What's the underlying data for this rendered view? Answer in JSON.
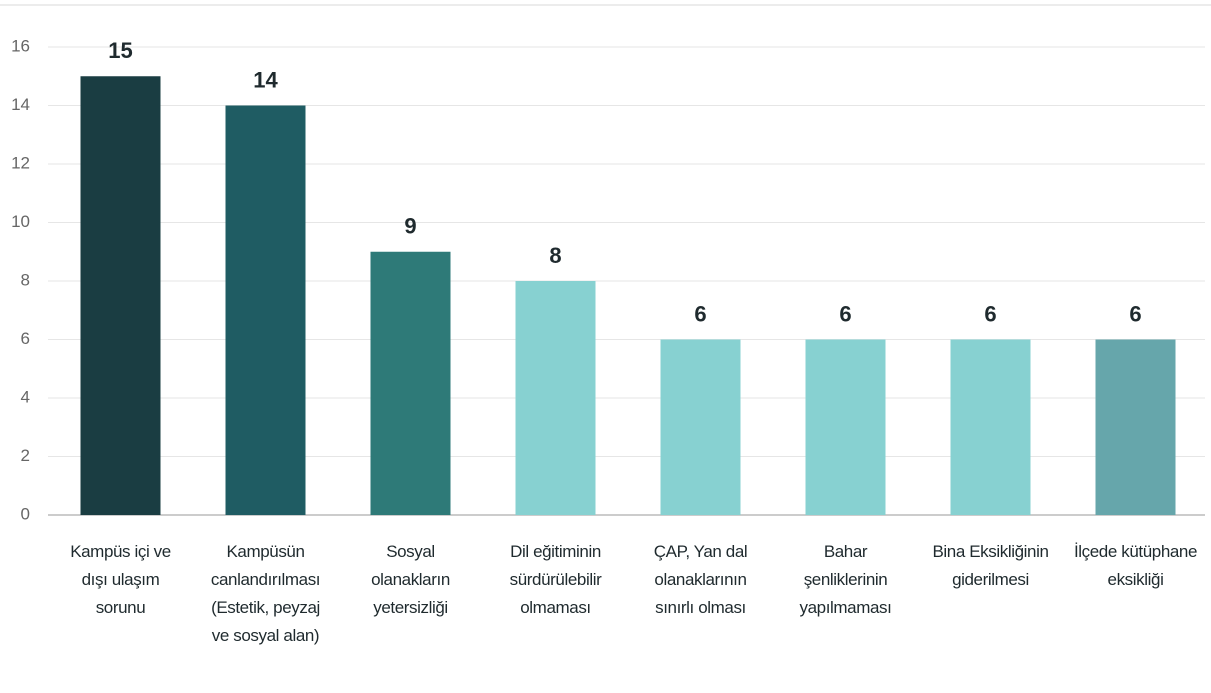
{
  "chart_data": {
    "type": "bar",
    "categories": [
      "Kampüs içi ve dışı ulaşım sorunu",
      "Kampüsün canlandırılması (Estetik, peyzaj ve sosyal alan)",
      "Sosyal olanakların yetersizliği",
      "Dil eğitiminin sürdürülebilir olmaması",
      "ÇAP, Yan dal olanaklarının sınırlı olması",
      "Bahar şenliklerinin yapılmaması",
      "Bina Eksikliğinin giderilmesi",
      "İlçede kütüphane eksikliği"
    ],
    "values": [
      15,
      14,
      9,
      8,
      6,
      6,
      6,
      6
    ],
    "colors": [
      "#1a3d42",
      "#1f5c63",
      "#2e7a78",
      "#87d1d1",
      "#87d1d1",
      "#87d1d1",
      "#87d1d1",
      "#66a6ab"
    ],
    "ylim": [
      0,
      16
    ],
    "yticks": [
      0,
      2,
      4,
      6,
      8,
      10,
      12,
      14,
      16
    ],
    "grid": true
  }
}
